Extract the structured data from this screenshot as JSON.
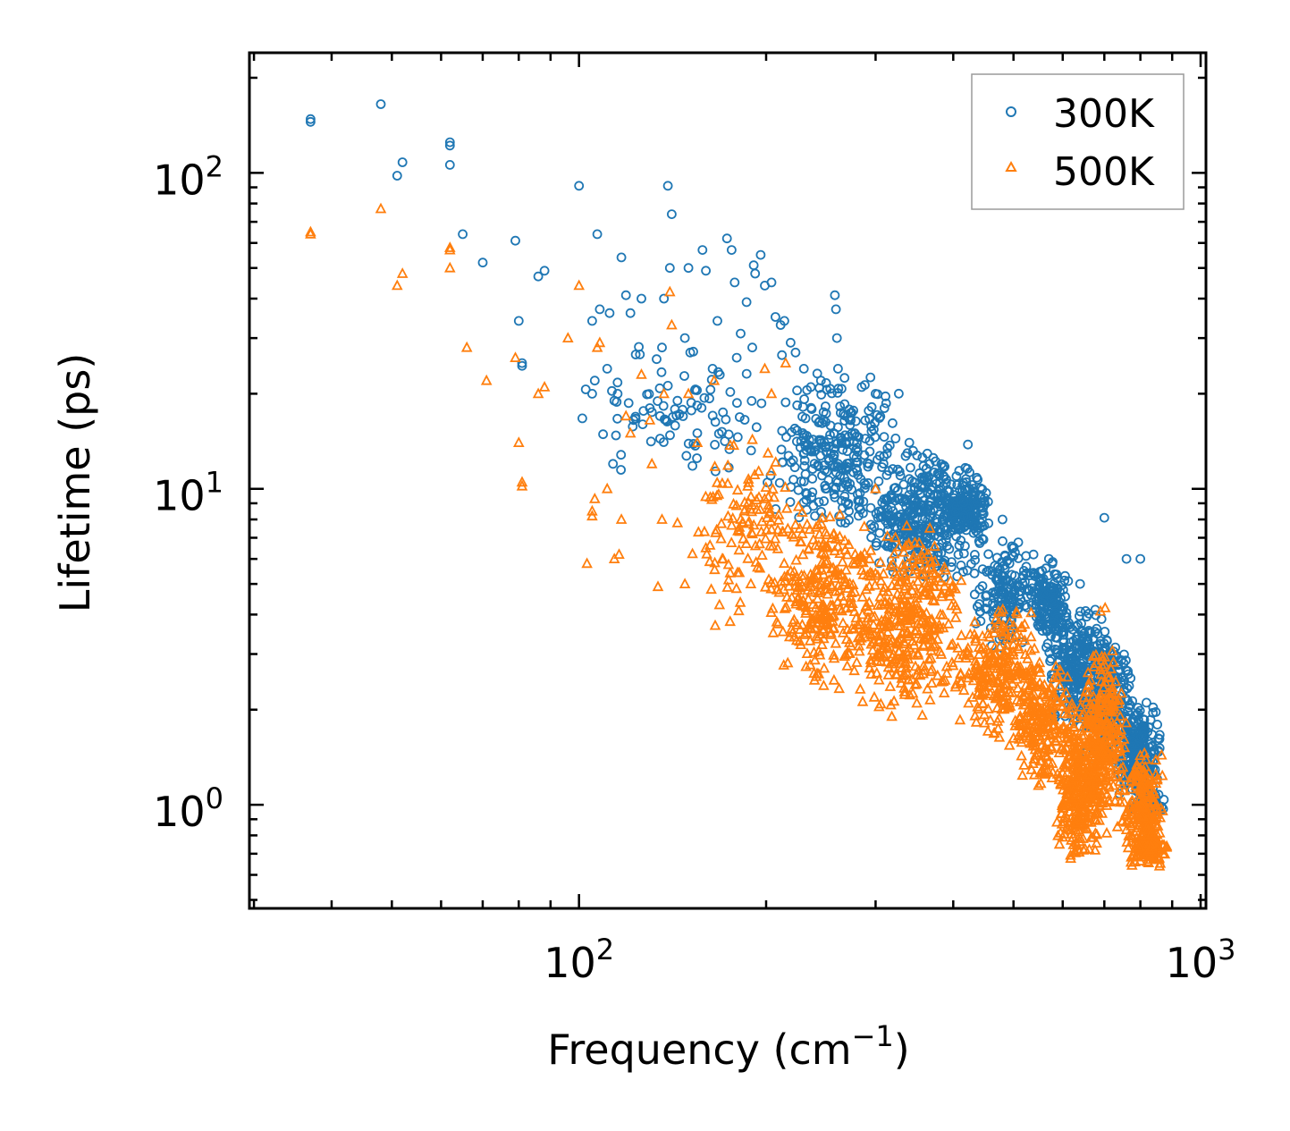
{
  "chart_data": {
    "type": "scatter",
    "title": "",
    "xlabel": "Frequency (cm",
    "xlabel_sup": "−1",
    "xlabel_close": ")",
    "ylabel": "Lifetime (ps)",
    "xscale": "log",
    "yscale": "log",
    "xlim": [
      29.5,
      1020
    ],
    "ylim": [
      0.47,
      240
    ],
    "x_ticks": [
      {
        "value": 100,
        "base": "10",
        "exp": "2"
      },
      {
        "value": 1000,
        "base": "10",
        "exp": "3"
      }
    ],
    "y_ticks": [
      {
        "value": 1,
        "base": "10",
        "exp": "0"
      },
      {
        "value": 10,
        "base": "10",
        "exp": "1"
      },
      {
        "value": 100,
        "base": "10",
        "exp": "2"
      }
    ],
    "legend": {
      "position": "top-right"
    },
    "series": [
      {
        "name": "300K",
        "marker": "circle",
        "color": "#1f77b4",
        "isolated_points": [
          [
            37,
            148
          ],
          [
            37,
            145
          ],
          [
            48,
            165
          ],
          [
            51,
            98
          ],
          [
            52,
            108
          ],
          [
            62,
            125
          ],
          [
            62,
            122
          ],
          [
            62,
            106
          ],
          [
            65,
            64
          ],
          [
            70,
            52
          ],
          [
            79,
            61
          ],
          [
            80,
            34
          ],
          [
            81,
            25
          ],
          [
            81,
            24.5
          ],
          [
            86,
            47
          ],
          [
            88,
            49
          ],
          [
            100,
            91
          ],
          [
            105,
            34
          ],
          [
            105,
            20
          ],
          [
            106,
            22
          ],
          [
            107,
            64
          ],
          [
            108,
            37
          ],
          [
            111,
            24
          ],
          [
            112,
            36
          ],
          [
            114,
            19
          ],
          [
            117,
            54
          ],
          [
            119,
            41
          ],
          [
            121,
            36
          ],
          [
            126,
            40
          ],
          [
            130,
            18
          ],
          [
            131,
            17.5
          ],
          [
            135,
            17
          ],
          [
            136,
            28
          ],
          [
            137,
            40
          ],
          [
            139,
            91
          ],
          [
            140,
            50
          ],
          [
            141,
            74
          ],
          [
            144,
            19
          ],
          [
            148,
            30
          ],
          [
            150,
            50
          ],
          [
            151,
            27
          ],
          [
            155,
            15
          ],
          [
            158,
            57
          ],
          [
            160,
            49
          ],
          [
            164,
            24
          ],
          [
            167,
            34
          ],
          [
            173,
            62
          ],
          [
            176,
            57
          ],
          [
            178,
            45
          ],
          [
            182,
            31
          ],
          [
            186,
            39
          ],
          [
            190,
            28
          ],
          [
            191,
            51
          ],
          [
            192,
            48
          ],
          [
            196,
            55
          ],
          [
            199,
            44
          ],
          [
            204,
            45
          ],
          [
            207,
            35
          ],
          [
            211,
            33
          ],
          [
            214,
            34
          ],
          [
            219,
            29
          ],
          [
            223,
            27
          ],
          [
            230,
            24
          ],
          [
            236,
            21
          ],
          [
            245,
            22
          ],
          [
            258,
            41
          ],
          [
            259,
            37
          ],
          [
            260,
            30
          ],
          [
            261,
            24
          ],
          [
            285,
            21
          ],
          [
            300,
            20
          ],
          [
            310,
            18
          ],
          [
            340,
            14
          ],
          [
            380,
            11
          ],
          [
            420,
            10.5
          ],
          [
            480,
            8
          ],
          [
            570,
            6
          ],
          [
            640,
            5
          ],
          [
            700,
            8.1
          ],
          [
            760,
            6
          ],
          [
            800,
            6
          ]
        ],
        "clusters": [
          {
            "x_range": [
              95,
              230
            ],
            "y_range": [
              10,
              30
            ],
            "count": 90
          },
          {
            "x_range": [
              200,
              330
            ],
            "y_range": [
              7,
              24
            ],
            "count": 260
          },
          {
            "x_range": [
              280,
              460
            ],
            "y_range": [
              5,
              14
            ],
            "count": 380
          },
          {
            "x_range": [
              380,
              460
            ],
            "y_range": [
              7,
              11
            ],
            "count": 150
          },
          {
            "x_range": [
              430,
              560
            ],
            "y_range": [
              3,
              7
            ],
            "count": 160
          },
          {
            "x_range": [
              530,
              620
            ],
            "y_range": [
              3,
              6
            ],
            "count": 160
          },
          {
            "x_range": [
              560,
              720
            ],
            "y_range": [
              1.7,
              4.5
            ],
            "count": 260
          },
          {
            "x_range": [
              650,
              780
            ],
            "y_range": [
              1.3,
              3.5
            ],
            "count": 220
          },
          {
            "x_range": [
              720,
              870
            ],
            "y_range": [
              0.93,
              2.2
            ],
            "count": 220
          },
          {
            "x_range": [
              800,
              880
            ],
            "y_range": [
              0.92,
              1.1
            ],
            "count": 60
          }
        ]
      },
      {
        "name": "500K",
        "marker": "triangle",
        "color": "#ff7f0e",
        "isolated_points": [
          [
            37,
            65
          ],
          [
            37,
            64
          ],
          [
            48,
            77
          ],
          [
            51,
            44
          ],
          [
            52,
            48
          ],
          [
            62,
            58
          ],
          [
            62,
            57
          ],
          [
            62,
            50
          ],
          [
            66,
            28
          ],
          [
            71,
            22
          ],
          [
            79,
            26
          ],
          [
            80,
            14
          ],
          [
            81,
            10.5
          ],
          [
            81,
            10.2
          ],
          [
            86,
            20
          ],
          [
            88,
            21
          ],
          [
            96,
            30
          ],
          [
            100,
            44
          ],
          [
            103,
            5.8
          ],
          [
            105,
            8.5
          ],
          [
            105,
            8.2
          ],
          [
            106,
            9.3
          ],
          [
            107,
            28
          ],
          [
            108,
            29
          ],
          [
            111,
            10
          ],
          [
            114,
            6
          ],
          [
            116,
            6.2
          ],
          [
            117,
            8
          ],
          [
            119,
            17
          ],
          [
            121,
            15
          ],
          [
            126,
            23
          ],
          [
            130,
            16.5
          ],
          [
            131,
            12
          ],
          [
            134,
            4.9
          ],
          [
            136,
            8
          ],
          [
            137,
            20
          ],
          [
            140,
            42
          ],
          [
            141,
            33
          ],
          [
            144,
            7.8
          ],
          [
            148,
            5
          ],
          [
            150,
            20
          ],
          [
            155,
            14
          ],
          [
            160,
            6.5
          ],
          [
            165,
            22
          ],
          [
            170,
            6
          ],
          [
            175,
            3.8
          ],
          [
            182,
            8
          ],
          [
            189,
            5
          ],
          [
            199,
            24
          ],
          [
            204,
            20
          ],
          [
            210,
            4.7
          ],
          [
            215,
            25
          ],
          [
            300,
            10
          ],
          [
            690,
            4.1
          ],
          [
            702,
            4.2
          ],
          [
            680,
            2.8
          ]
        ],
        "clusters": [
          {
            "x_range": [
              150,
              230
            ],
            "y_range": [
              3.6,
              15
            ],
            "count": 120
          },
          {
            "x_range": [
              200,
              300
            ],
            "y_range": [
              2.3,
              9
            ],
            "count": 280
          },
          {
            "x_range": [
              270,
              420
            ],
            "y_range": [
              1.8,
              8
            ],
            "count": 380
          },
          {
            "x_range": [
              400,
              560
            ],
            "y_range": [
              1.5,
              4.5
            ],
            "count": 240
          },
          {
            "x_range": [
              500,
              620
            ],
            "y_range": [
              1.1,
              3
            ],
            "count": 200
          },
          {
            "x_range": [
              580,
              700
            ],
            "y_range": [
              0.63,
              2.2
            ],
            "count": 300
          },
          {
            "x_range": [
              640,
              760
            ],
            "y_range": [
              0.8,
              3.5
            ],
            "count": 280
          },
          {
            "x_range": [
              740,
              880
            ],
            "y_range": [
              0.62,
              1.5
            ],
            "count": 220
          },
          {
            "x_range": [
              780,
              890
            ],
            "y_range": [
              0.62,
              0.85
            ],
            "count": 70
          }
        ]
      }
    ]
  }
}
